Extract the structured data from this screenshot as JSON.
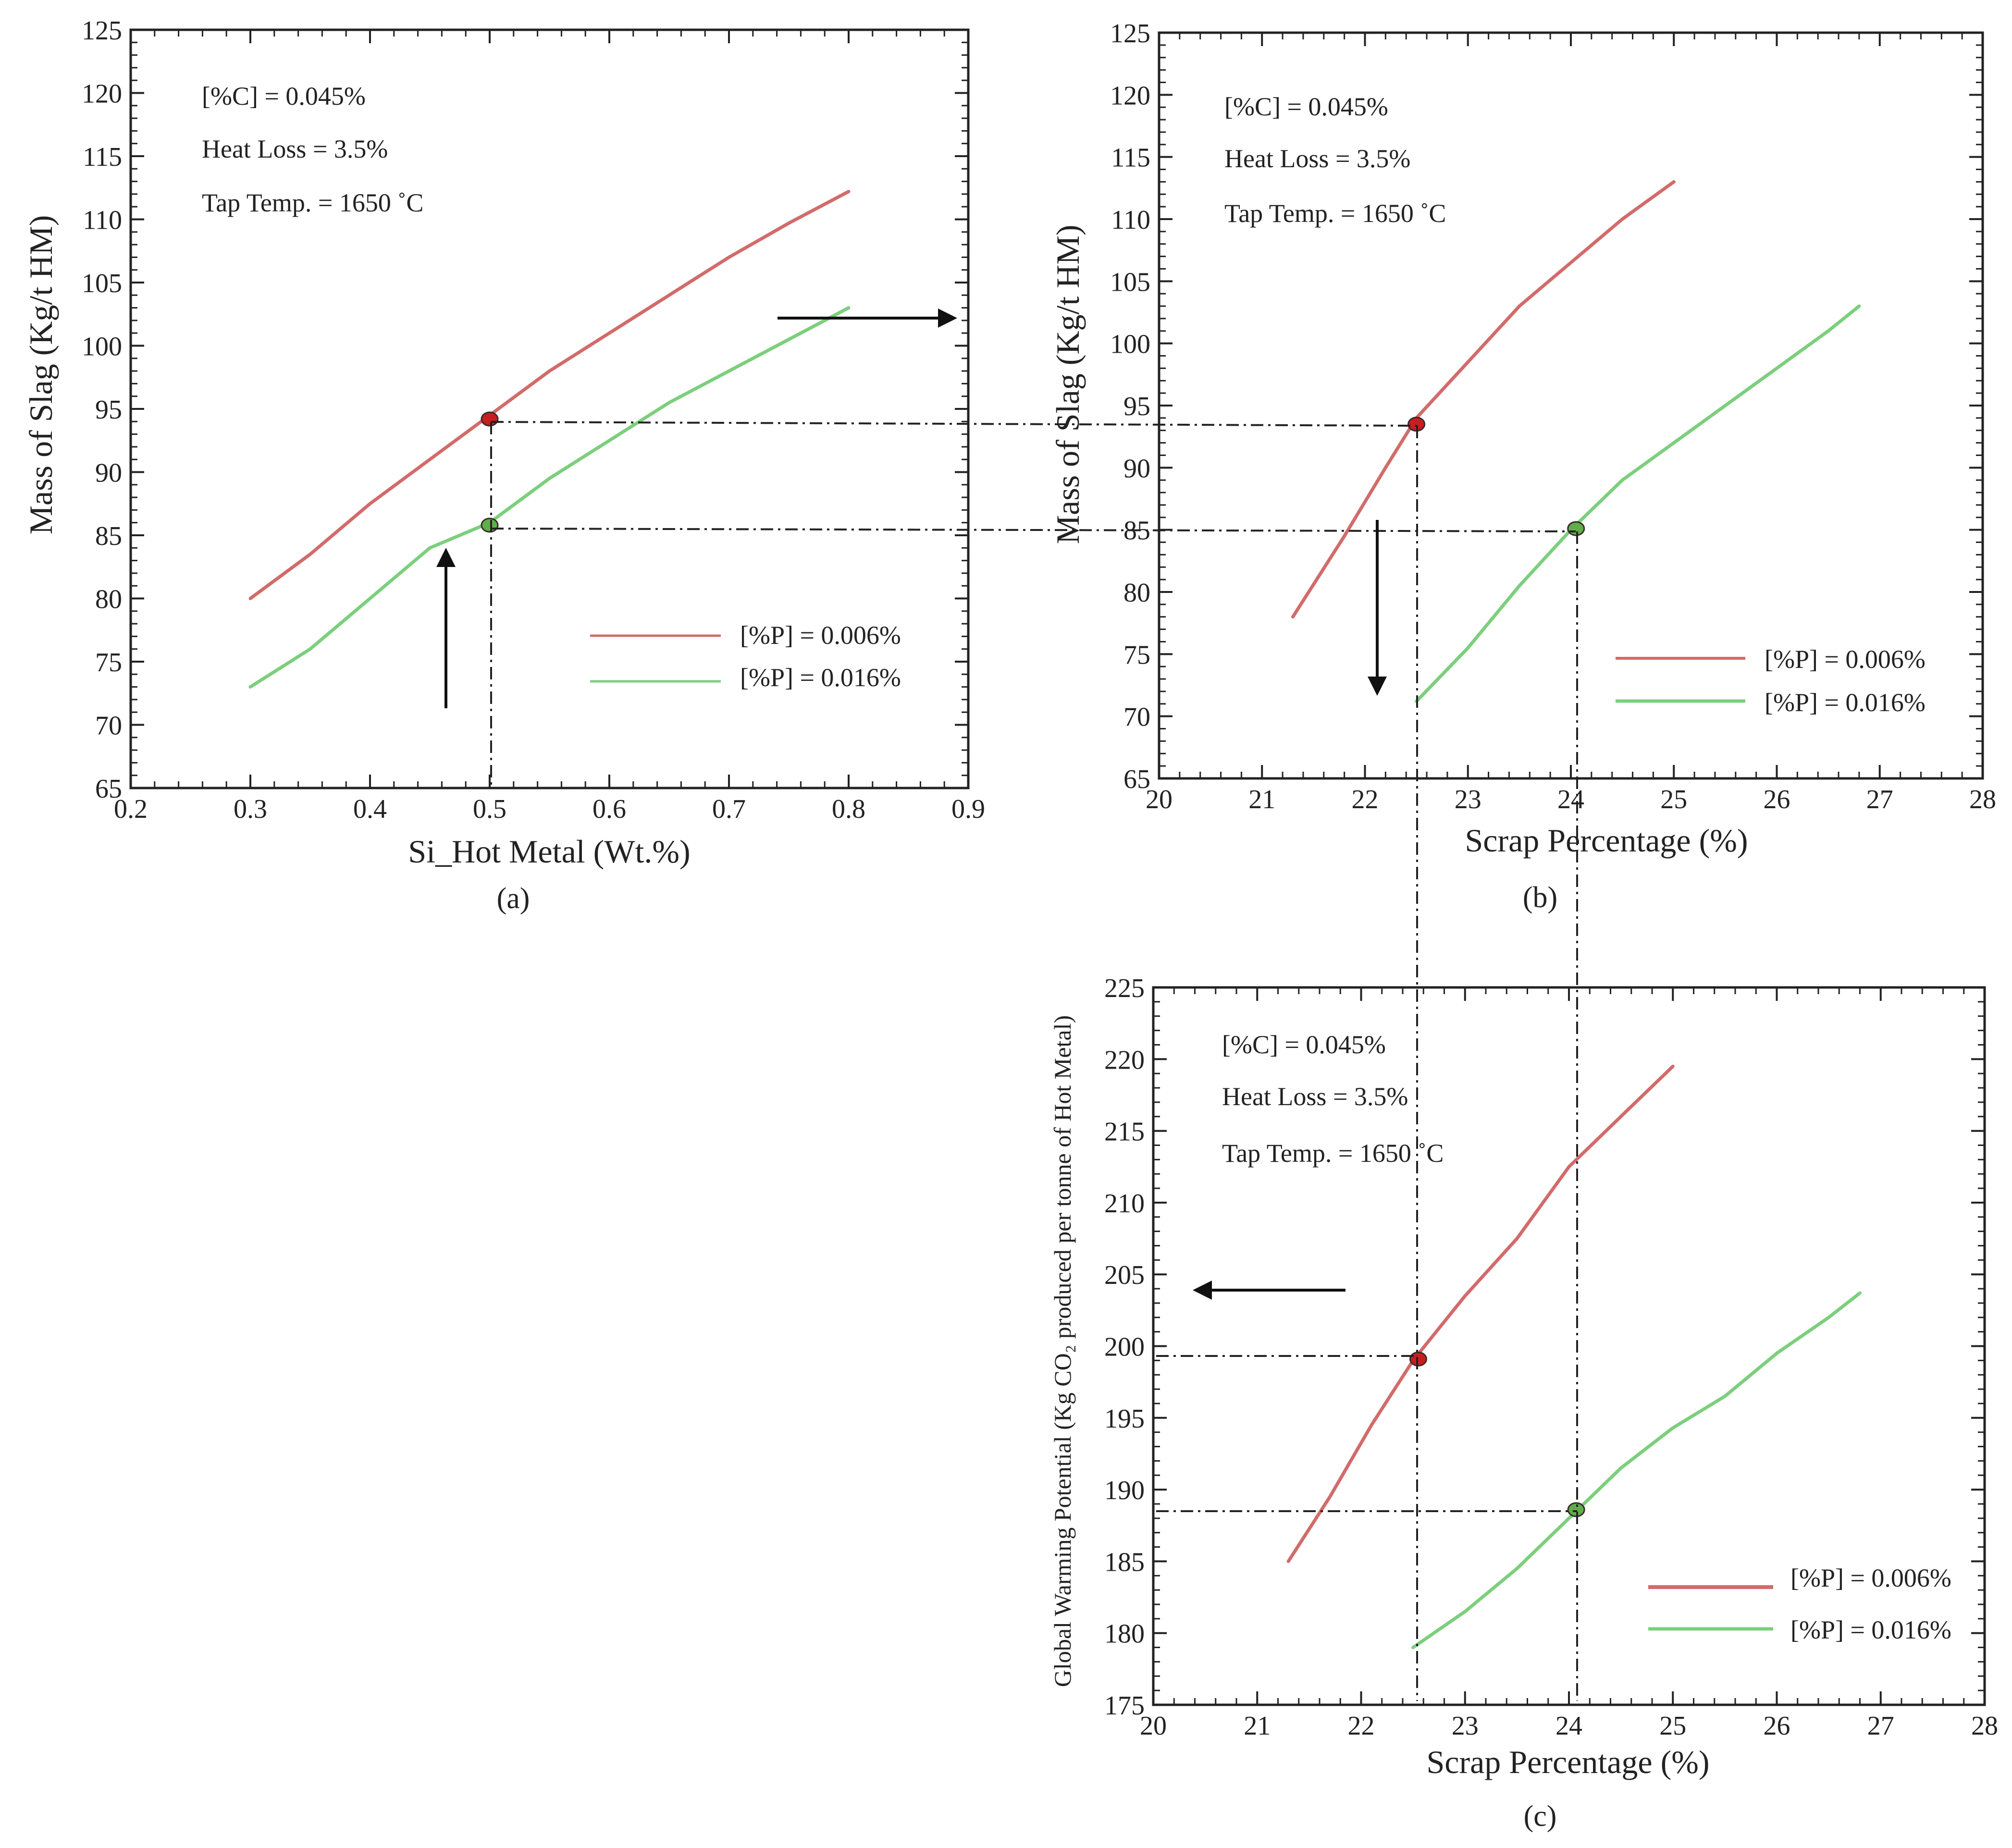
{
  "colors": {
    "red": "#d26b6b",
    "green": "#7ccf7c",
    "axis": "#222222",
    "guide": "#222222"
  },
  "annotations": [
    "[%C] = 0.045%",
    "Heat Loss = 3.5%",
    "Tap Temp. = 1650 ˚C"
  ],
  "chart_data": [
    {
      "id": "a",
      "type": "line",
      "panel_label": "(a)",
      "xlabel": "Si_Hot Metal (Wt.%)",
      "ylabel": "Mass of Slag (Kg/t HM)",
      "xlim": [
        0.2,
        0.9
      ],
      "ylim": [
        65,
        125
      ],
      "xticks": [
        "0.2",
        "0.3",
        "0.4",
        "0.5",
        "0.6",
        "0.7",
        "0.8",
        "0.9"
      ],
      "yticks": [
        "65",
        "70",
        "75",
        "80",
        "85",
        "90",
        "95",
        "100",
        "105",
        "110",
        "115",
        "120",
        "125"
      ],
      "legend_position": "bottom-right",
      "series": [
        {
          "name": "[%P] = 0.006%",
          "color": "red",
          "x": [
            0.3,
            0.35,
            0.4,
            0.45,
            0.5,
            0.55,
            0.6,
            0.65,
            0.7,
            0.75,
            0.8
          ],
          "y": [
            80,
            83.5,
            87.5,
            91,
            94.5,
            98,
            101,
            104,
            107,
            109.7,
            112.2
          ]
        },
        {
          "name": "[%P] = 0.016%",
          "color": "green",
          "x": [
            0.3,
            0.35,
            0.4,
            0.45,
            0.5,
            0.55,
            0.6,
            0.65,
            0.7,
            0.75,
            0.8
          ],
          "y": [
            73,
            76,
            80,
            84,
            86,
            89.5,
            92.5,
            95.5,
            98,
            100.5,
            103
          ]
        }
      ],
      "markers": [
        {
          "x": 0.5,
          "y": 94.2,
          "color": "red"
        },
        {
          "x": 0.5,
          "y": 85.8,
          "color": "green"
        }
      ]
    },
    {
      "id": "b",
      "type": "line",
      "panel_label": "(b)",
      "xlabel": "Scrap Percentage (%)",
      "ylabel": "Mass of Slag (Kg/t  HM)",
      "xlim": [
        20,
        28
      ],
      "ylim": [
        65,
        125
      ],
      "xticks": [
        "20",
        "21",
        "22",
        "23",
        "24",
        "25",
        "26",
        "27",
        "28"
      ],
      "yticks": [
        "65",
        "70",
        "75",
        "80",
        "85",
        "90",
        "95",
        "100",
        "105",
        "110",
        "115",
        "120",
        "125"
      ],
      "legend_position": "bottom-right",
      "series": [
        {
          "name": "[%P] = 0.006%",
          "color": "red",
          "x": [
            21.3,
            21.8,
            22.2,
            22.5,
            23,
            23.5,
            24,
            24.5,
            25
          ],
          "y": [
            78,
            84.5,
            90,
            94,
            98.5,
            103,
            106.5,
            110,
            113
          ]
        },
        {
          "name": "[%P] = 0.016%",
          "color": "green",
          "x": [
            22.5,
            23,
            23.5,
            24,
            24.5,
            25,
            25.5,
            26,
            26.5,
            26.8
          ],
          "y": [
            71.2,
            75.5,
            80.5,
            85,
            89,
            92,
            95,
            98,
            101,
            103
          ]
        }
      ],
      "markers": [
        {
          "x": 22.5,
          "y": 93.5,
          "color": "red"
        },
        {
          "x": 24.05,
          "y": 85.1,
          "color": "green"
        }
      ]
    },
    {
      "id": "c",
      "type": "line",
      "panel_label": "(c)",
      "xlabel": "Scrap Percentage (%)",
      "ylabel": "Global Warming Potential (Kg CO₂ produced  per tonne of Hot Metal)",
      "xlim": [
        20,
        28
      ],
      "ylim": [
        175,
        225
      ],
      "xticks": [
        "20",
        "21",
        "22",
        "23",
        "24",
        "25",
        "26",
        "27",
        "28"
      ],
      "yticks": [
        "175",
        "180",
        "185",
        "190",
        "195",
        "200",
        "205",
        "210",
        "215",
        "220",
        "225"
      ],
      "legend_position": "bottom-right",
      "series": [
        {
          "name": "[%P] = 0.006%",
          "color": "red",
          "x": [
            21.3,
            21.7,
            22.1,
            22.5,
            23,
            23.5,
            24,
            24.5,
            25
          ],
          "y": [
            185,
            189.5,
            194.5,
            199,
            203.5,
            207.5,
            212.5,
            216,
            219.5
          ]
        },
        {
          "name": "[%P] = 0.016%",
          "color": "green",
          "x": [
            22.5,
            23,
            23.5,
            24,
            24.5,
            25,
            25.5,
            26,
            26.5,
            26.8
          ],
          "y": [
            179,
            181.5,
            184.5,
            188,
            191.5,
            194.3,
            196.5,
            199.5,
            202,
            203.7
          ]
        }
      ],
      "markers": [
        {
          "x": 22.55,
          "y": 199.1,
          "color": "red"
        },
        {
          "x": 24.07,
          "y": 188.6,
          "color": "green"
        }
      ]
    }
  ]
}
